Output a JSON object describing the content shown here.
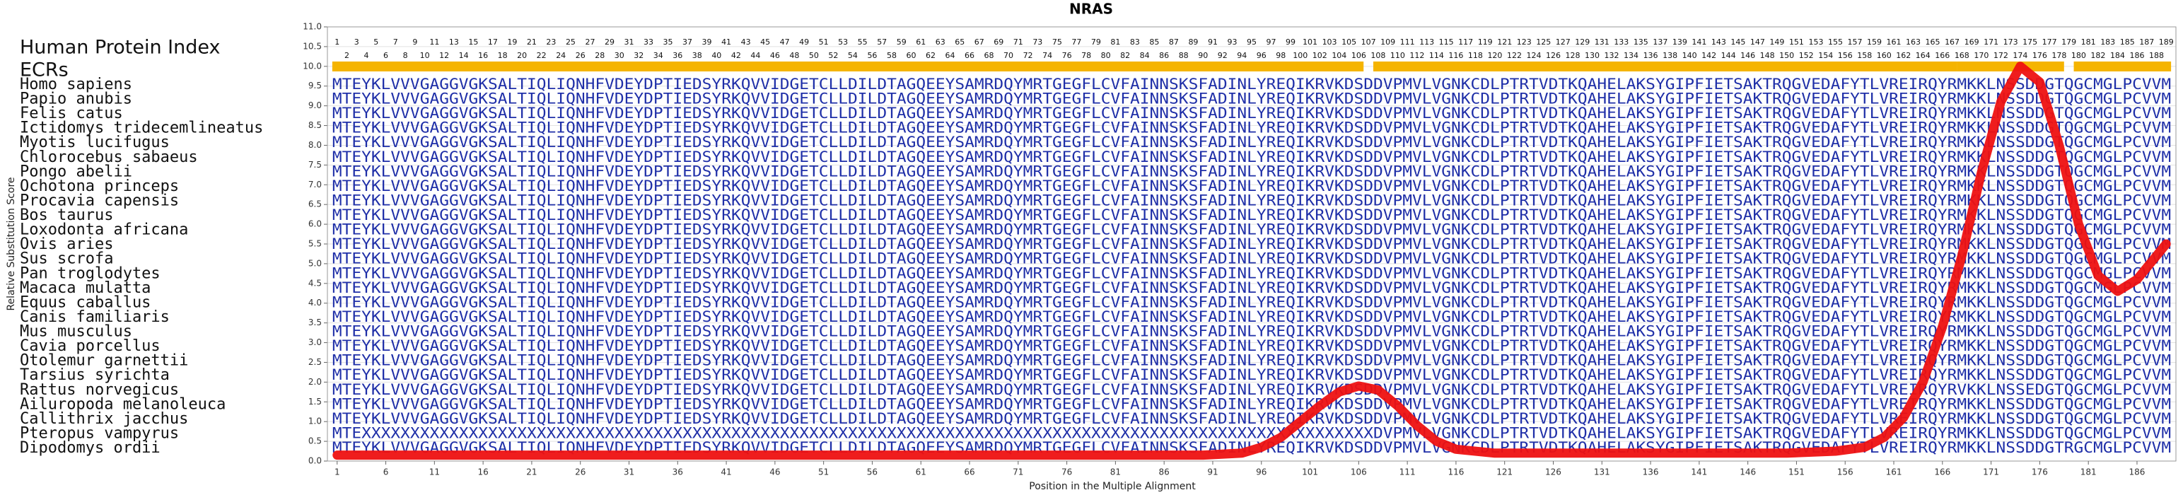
{
  "chart_data": {
    "type": "line",
    "title": "NRAS",
    "x_label": "Position in the Multiple Alignment",
    "y_label": "Relative Substitution Score",
    "index_label": "Human Protein Index",
    "ecr_label": "ECRs",
    "color": "#ee1111",
    "ecr_color": "#f5b400",
    "sequence_color": "#1f2fa8",
    "grid": true,
    "xlim": [
      0,
      190
    ],
    "ylim": [
      0,
      11
    ],
    "xticks": [
      1,
      6,
      11,
      16,
      21,
      26,
      31,
      36,
      41,
      46,
      51,
      56,
      61,
      66,
      71,
      76,
      81,
      86,
      91,
      96,
      101,
      106,
      111,
      116,
      121,
      126,
      131,
      136,
      141,
      146,
      151,
      156,
      161,
      166,
      171,
      176,
      181,
      186
    ],
    "yticks": [
      {
        "value": 0,
        "label": "0.0"
      },
      0.5,
      {
        "value": 1,
        "label": "1.0"
      },
      1.5,
      {
        "value": 2,
        "label": "2.0"
      },
      2.5,
      {
        "value": 3,
        "label": "3.0"
      },
      3.5,
      {
        "value": 4,
        "label": "4.0"
      },
      4.5,
      {
        "value": 5,
        "label": "5.0"
      },
      5.5,
      {
        "value": 6,
        "label": "6.0"
      },
      6.5,
      {
        "value": 7,
        "label": "7.0"
      },
      7.5,
      {
        "value": 8,
        "label": "8.0"
      },
      8.5,
      {
        "value": 9,
        "label": "9.0"
      },
      9.5,
      {
        "value": 10,
        "label": "10.0"
      },
      10.5,
      {
        "value": 11,
        "label": "11.0"
      }
    ],
    "x": [
      1,
      10,
      20,
      30,
      40,
      50,
      60,
      70,
      80,
      90,
      94,
      96,
      98,
      100,
      102,
      104,
      106,
      108,
      110,
      112,
      114,
      116,
      120,
      130,
      140,
      150,
      155,
      158,
      160,
      162,
      164,
      166,
      168,
      170,
      172,
      174,
      176,
      178,
      180,
      182,
      184,
      186,
      188,
      189
    ],
    "values": [
      0.15,
      0.15,
      0.15,
      0.15,
      0.15,
      0.15,
      0.15,
      0.15,
      0.15,
      0.15,
      0.2,
      0.35,
      0.6,
      1.0,
      1.4,
      1.75,
      1.9,
      1.8,
      1.4,
      0.9,
      0.5,
      0.3,
      0.2,
      0.2,
      0.2,
      0.2,
      0.25,
      0.35,
      0.6,
      1.1,
      2.0,
      3.4,
      5.2,
      7.3,
      9.1,
      10.0,
      9.6,
      8.0,
      6.0,
      4.7,
      4.3,
      4.6,
      5.2,
      5.5
    ],
    "protein_index": [
      1,
      2,
      3,
      4,
      5,
      6,
      7,
      8,
      9,
      10,
      11,
      12,
      13,
      14,
      15,
      16,
      17,
      18,
      19,
      20,
      21,
      22,
      23,
      24,
      25,
      26,
      27,
      28,
      29,
      30,
      31,
      32,
      33,
      34,
      35,
      36,
      37,
      38,
      39,
      40,
      41,
      42,
      43,
      44,
      45,
      46,
      47,
      48,
      49,
      50,
      51,
      52,
      53,
      54,
      55,
      56,
      57,
      58,
      59,
      60,
      61,
      62,
      63,
      64,
      65,
      66,
      67,
      68,
      69,
      70,
      71,
      72,
      73,
      74,
      75,
      76,
      77,
      78,
      79,
      80,
      81,
      82,
      83,
      84,
      85,
      86,
      87,
      88,
      89,
      90,
      91,
      92,
      93,
      94,
      95,
      96,
      97,
      98,
      99,
      100,
      101,
      102,
      103,
      104,
      105,
      106,
      107,
      108,
      109,
      110,
      111,
      112,
      113,
      114,
      115,
      116,
      117,
      118,
      119,
      120,
      121,
      122,
      123,
      124,
      125,
      126,
      127,
      128,
      129,
      130,
      131,
      132,
      133,
      134,
      135,
      136,
      137,
      138,
      139,
      140,
      141,
      142,
      143,
      144,
      145,
      146,
      147,
      148,
      149,
      150,
      151,
      152,
      153,
      154,
      155,
      156,
      157,
      158,
      159,
      160,
      161,
      162,
      163,
      164,
      165,
      166,
      167,
      168,
      169,
      170,
      171,
      172,
      173,
      174,
      175,
      176,
      177,
      178,
      179,
      180,
      181,
      182,
      183,
      184,
      185,
      186,
      187,
      188,
      189
    ],
    "ecrs": [
      [
        1,
        106
      ],
      [
        108,
        167
      ],
      [
        168,
        178
      ],
      [
        180,
        189
      ]
    ],
    "alignment": [
      {
        "name": "Homo sapiens",
        "sequence": "MTEYKLVVVGAGGVGKSALTIQLIQNHFVDEYDPTIEDSYRKQVVIDGETCLLDILDTAGQEEYSAMRDQYMRTGEGFLCVFAINNSKSFADINLYREQIKRVKDSDDVPMVLVGNKCDLPTRTVDTKQAHELAKSYGIPFIETSAKTRQGVEDAFYTLVREIRQYRMKKLNSSDDGTQGCMGLPCVVM"
      },
      {
        "name": "Papio anubis",
        "sequence": "MTEYKLVVVGAGGVGKSALTIQLIQNHFVDEYDPTIEDSYRKQVVIDGETCLLDILDTAGQEEYSAMRDQYMRTGEGFLCVFAINNSKSFADINLYREQIKRVKDSDDVPMVLVGNKCDLPTRTVDTKQAHELAKSYGIPFIETSAKTRQGVEDAFYTLVREIRQYRMKKLNSSDDGTQGCMGLPCVVM"
      },
      {
        "name": "Felis catus",
        "sequence": "MTEYKLVVVGAGGVGKSALTIQLIQNHFVDEYDPTIEDSYRKQVVIDGETCLLDILDTAGQEEYSAMRDQYMRTGEGFLCVFAINNSKSFADINLYREQIKRVKDSDDVPMVLVGNKCDLPTRTVDTKQAHELAKSYGIPFIETSAKTRQGVEDAFYTLVREIRQYRMKKLNSSDDGTQGCMGLPCVVM"
      },
      {
        "name": "Ictidomys tridecemlineatus",
        "sequence": "MTEYKLVVVGAGGVGKSALTIQLIQNHFVDEYDPTIEDSYRKQVVIDGETCLLDILDTAGQEEYSAMRDQYMRTGEGFLCVFAINNSKSFADINLYREQIKRVKDSDDVPMVLVGNKCDLPTRTVDTKQAHELAKSYGIPFIETSAKTRQGVEDAFYTLVREIRQYRMKKLNSSDDGTQGCMGLPCVVM"
      },
      {
        "name": "Myotis lucifugus",
        "sequence": "MTEYKLVVVGAGGVGKSALTIQLIQNHFVDEYDPTIEDSYRKQVVIDGETCLLDILDTAGQEEYSAMRDQYMRTGEGFLCVFAINNSKSFADINLYREQIKRVKDSDDVPMVLVGNKCDLPTRTVDTKQAHELAKSYGIPFIETSAKTRQGVEDAFYTLVREIRQYRMKKLNSSDDGTQGCMGLPCVVM"
      },
      {
        "name": "Chlorocebus sabaeus",
        "sequence": "MTEYKLVVVGAGGVGKSALTIQLIQNHFVDEYDPTIEDSYRKQVVIDGETCLLDILDTAGQEEYSAMRDQYMRTGEGFLCVFAINNSKSFADINLYREQIKRVKDSDDVPMVLVGNKCDLPTRTVDTKQAHELAKSYGIPFIETSAKTRQGVEDAFYTLVREIRQYRMKKLNSSDDGTQGCMGLPCVVM"
      },
      {
        "name": "Pongo abelii",
        "sequence": "MTEYKLVVVGAGGVGKSALTIQLIQNHFVDEYDPTIEDSYRKQVVIDGETCLLDILDTAGQEEYSAMRDQYMRTGEGFLCVFAINNSKSFADINLYREQIKRVKDSDDVPMVLVGNKCDLPTRTVDTKQAHELAKSYGIPFIETSAKTRQGVEDAFYTLVREIRQYRMKKLNSSDDGTQGCMGLPCVVM"
      },
      {
        "name": "Ochotona princeps",
        "sequence": "MTEYKLVVVGAGGVGKSALTIQLIQNHFVDEYDPTIEDSYRKQVVIDGETCLLDILDTAGQEEYSAMRDQYMRTGEGFLCVFAINNSKSFADINLYREQIKRVKDSDDVPMVLVGNKCDLPTRTVDTKQAHELAKSYGIPFIETSAKTRQGVEDAFYTLVREIRQYRMKKLNSSDDGTQGCMGLPCVVM"
      },
      {
        "name": "Procavia capensis",
        "sequence": "MTEYKLVVVGAGGVGKSALTIQLIQNHFVDEYDPTIEDSYRKQVVIDGETCLLDILDTAGQEEYSAMRDQYMRTGEGFLCVFAINNSKSFADINLYREQIKRVKDSDDVPMVLVGNKCDLPTRTVDTKQAHELAKSYGIPFIETSAKTRQGVEDAFYTLVREIRQYRMKKLNSSDDGTQGCMGLPCVVM"
      },
      {
        "name": "Bos taurus",
        "sequence": "MTEYKLVVVGAGGVGKSALTIQLIQNHFVDEYDPTIEDSYRKQVVIDGETCLLDILDTAGQEEYSAMRDQYMRTGEGFLCVFAINNSKSFADINLYREQIKRVKDSDDVPMVLVGNKCDLPTRTVDTKQAHELAKSYGIPFIETSAKTRQGVEDAFYTLVREIRQYRMKKLNSSDDGTQGCMGLPCVVM"
      },
      {
        "name": "Loxodonta africana",
        "sequence": "MTEYKLVVVGAGGVGKSALTIQLIQNHFVDEYDPTIEDSYRKQVVIDGETCLLDILDTAGQEEYSAMRDQYMRTGEGFLCVFAINNSKSFADINLYREQIKRVKDSDDVPMVLVGNKCDLPTRTVDTKQAHELAKSYGIPFIETSAKTRQGVEDAFYTLVREIRQYRMKKLNSSDDGTQGCMGLPCVVM"
      },
      {
        "name": "Ovis aries",
        "sequence": "MTEYKLVVVGAGGVGKSALTIQLIQNHFVDEYDPTIEDSYRKQVVIDGETCLLDILDTAGQEEYSAMRDQYMRTGEGFLCVFAINNSKSFADINLYREQIKRVKDSDDVPMVLVGNKCDLPTRTVDTKQAHELAKSYGIPFIETSAKTRQGVEDAFYTLVREIRQYRMKKLNSSDDGTQGCMGLPCVVM"
      },
      {
        "name": "Sus scrofa",
        "sequence": "MTEYKLVVVGAGGVGKSALTIQLIQNHFVDEYDPTIEDSYRKQVVIDGETCLLDILDTAGQEEYSAMRDQYMRTGEGFLCVFAINNSKSFADINLYREQIKRVKDSDDVPMVLVGNKCDLPTRTVDTKQAHELAKSYGIPFIETSAKTRQGVEDAFYTLVREIRQYRMKKLNSSDDGTQGCMGLPCVVM"
      },
      {
        "name": "Pan troglodytes",
        "sequence": "MTEYKLVVVGAGGVGKSALTIQLIQNHFVDEYDPTIEDSYRKQVVIDGETCLLDILDTAGQEEYSAMRDQYMRTGEGFLCVFAINNSKSFADINLYREQIKRVKDSDDVPMVLVGNKCDLPTRTVDTKQAHELAKSYGIPFIETSAKTRQGVEDAFYTLVREIRQYRMKKLNSSDDGTQGCMGLPCVVM"
      },
      {
        "name": "Macaca mulatta",
        "sequence": "MTEYKLVVVGAGGVGKSALTIQLIQNHFVDEYDPTIEDSYRKQVVIDGETCLLDILDTAGQEEYSAMRDQYMRTGEGFLCVFAINNSKSFADINLYREQIKRVKDSDDVPMVLVGNKCDLPTRTVDTKQAHELAKSYGIPFIETSAKTRQGVEDAFYTLVREIRQYRMKKLNSSDDGTQGCMGLPCVVM"
      },
      {
        "name": "Equus caballus",
        "sequence": "MTEYKLVVVGAGGVGKSALTIQLIQNHFVDEYDPTIEDSYRKQVVIDGETCLLDILDTAGQEEYSAMRDQYMRTGEGFLCVFAINNSKSFADINLYREQIKRVKDSDDVPMVLVGNKCDLPTRTVDTKQAHELAKSYGIPFIETSAKTRQGVEDAFYTLVREIRQYRMKKLNSSDDGTQGCMGLPCVVM"
      },
      {
        "name": "Canis familiaris",
        "sequence": "MTEYKLVVVGAGGVGKSALTIQLIQNHFVDEYDPTIEDSYRKQVVIDGETCLLDILDTAGQEEYSAMRDQYMRTGEGFLCVFAINNSKSFADINLYREQIKRVKDSDDVPMVLVGNKCDLPTRTVDTKQAHELAKSYGIPFIETSAKTRQGVEDAFYTLVREIRQYRMKKLNSSDDGTQGCMGLPCVVM"
      },
      {
        "name": "Mus musculus",
        "sequence": "MTEYKLVVVGAGGVGKSALTIQLIQNHFVDEYDPTIEDSYRKQVVIDGETCLLDILDTAGQEEYSAMRDQYMRTGEGFLCVFAINNSKSFADINLYREQIKRVKDSDDVPMVLVGNKCDLPTRTVDTKQAHELAKSYGIPFIETSAKTRQGVEDAFYTLVREIRQYRMKKLNSSDDGTQGCMGLPCVVM"
      },
      {
        "name": "Cavia porcellus",
        "sequence": "MTEYKLVVVGAGGVGKSALTIQLIQNHFVDEYDPTIEDSYRKQVVIDGETCLLDILDTAGQEEYSAMRDQYMRTGEGFLCVFAINNSKSFADINLYREQIKRVKDSDDVPMVLVGNKCDLPTRTVDTKQAHELAKSYGIPFIETSAKTRQGVEDAFYTLVREIRQYRMKKLNSSDDGTQGCMGLPCVVM"
      },
      {
        "name": "Otolemur garnettii",
        "sequence": "MTEYKLVVVGAGGVGKSALTIQLIQNHFVDEYDPTIEDSYRKQVVIDGETCLLDILDTAGQEEYSAMRDQYMRTGEGFLCVFAINNSKSFADINLYREQIKRVKDSDDVPMVLVGNKCDLPTRTVDTKQAHELAKSYGIPFIETSAKTRQGVEDAFYTLVREIRQYRMKKLNSSDDGTQGCMGLPCVVM"
      },
      {
        "name": "Tarsius syrichta",
        "sequence": "MTEYKLVVVGAGGVGKSALTIQLIQNHFVDEYDPTIEDSYRKQVVIDGETCLLDILDTAGQEEYSAMRDQYMRTGEGFLCVFAINNSKSFADINLYREQIKRVKDSDDVPMVLVGNKCDLPTRTVDTKQAHELAKSYGIPFIETSAKTRQGVEDAFYTLVREIRQYRMKKLNSSDDGTQGCMGLPCVVM"
      },
      {
        "name": "Rattus norvegicus",
        "sequence": "MTEYKLVVVGAGGVGKSALTIQLIQNHFVDEYDPTIEDSYRKQVVIDGETCLLDILDTAGQEEYSAMRDQYMRTGEGFLCVFAINNSKSFADINLYREQIKRVKDSDDVPMVLVGNKCDLPTRTVDTKQAHELAKSYGIPFIETSAKTRQGVEDAFYTLVREIRQYRVKKLNSSEDGTQGCMGLPCVVM"
      },
      {
        "name": "Ailuropoda melanoleuca",
        "sequence": "MTEYKLVVVGAGGVGKSALTIQLIQNHFVDEYDPTIEDSYRKQVVIDGETCLLDILDTAGQEEYSAMRDQYMRTGEGFLCVFAINNSKSFADINLYREQIKRVKDSDDVPMVLVGNKCDLPTRTVDTKQAHELAKSYGIPFIETSAKTRQGVEDAFYTLVREIRQYRMKKLNSSDDGTQGCMGLPCVVM"
      },
      {
        "name": "Callithrix jacchus",
        "sequence": "MTEYKLVVVGAGGVGKSALTIQLIQNHFVDEYDPTIEDSYRKQVVIDGETCLLDILDTAGQEEYSAMRDQYMRTGEGFLCVFAINNSKSFADINLYREQIKRVKDSDDVPMVLVGNKCDLPTRTVDTKQAHELAKSYGIPFIETSAKTRQGVEDAFYTLVREIRQYRMKKLNSSDDGTQGCMGLPCVVM"
      },
      {
        "name": "Pteropus vampyrus",
        "sequence": "MTEXXXXXXXXXXXXXXXXXXXXXXXXXXXXXXXXXXXXXXXXXXXXXXXXXXXXXXXXXXXXXXXXXXXXXXXXXXXXXXXXXXXXXXXXXXXXXXXXXXXXXXXXDVPMVLVGNKCDLPTRTVDTKQAHELAKSYGIPFIETSAKTRQGVEDAFYTLVREIRQYRMKKLNSSDDGTQGCMGLPCVVM"
      },
      {
        "name": "Dipodomys ordii",
        "sequence": "MTEYKLVVVGAGGVGKSALTIQLIQNHFVDEYDPTIEDSYRKQVVIDGETCLLDILDTAGQEEYSAMRDQYMRTGEGFLCVFAINNSKSFADINLYREQIKRVKDSDDVPMVLVGNKCDLPTRTVDTKQAHELAKSYGIPFIETSAKTRQGVEDAFYTLVREIRQYRMKKLNSSDDGTRGCMGLPCVVM"
      }
    ]
  }
}
